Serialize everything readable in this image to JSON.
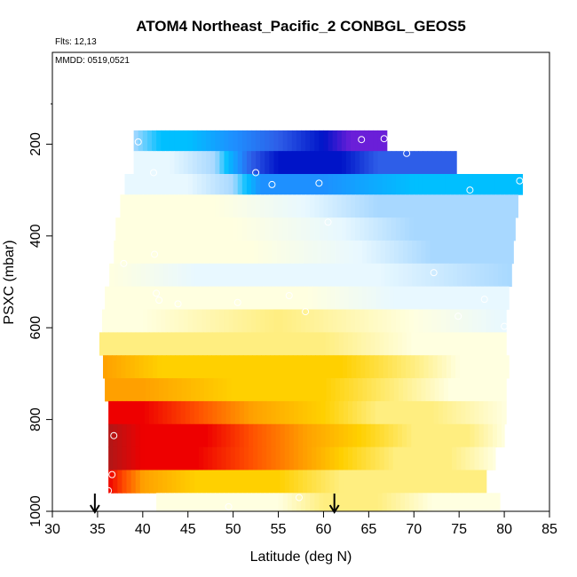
{
  "chart_data": {
    "type": "heatmap",
    "title": "ATOM4 Northeast_Pacific_2 CONBGL_GEOS5",
    "annotations": {
      "flights": "Flts: 12,13",
      "dates": "MMDD: 0519,0521"
    },
    "xlabel": "Latitude (deg N)",
    "ylabel": "PSXC (mbar)",
    "xlim": [
      30,
      85
    ],
    "ylim": [
      1000,
      0
    ],
    "y_reversed": true,
    "x_ticks": [
      30,
      35,
      40,
      45,
      50,
      55,
      60,
      65,
      70,
      75,
      80,
      85
    ],
    "y_ticks": [
      200,
      400,
      600,
      800,
      1000
    ],
    "x_tick_labels": [
      "30",
      "35",
      "40",
      "45",
      "50",
      "55",
      "60",
      "65",
      "70",
      "75",
      "80",
      "85"
    ],
    "y_tick_labels": [
      "200",
      "400",
      "600",
      "800",
      "1000"
    ],
    "grid": false,
    "colors": {
      "palette": [
        "#6a1fd8",
        "#0014c8",
        "#2e5ee8",
        "#1e90ff",
        "#00bfff",
        "#a8d8ff",
        "#e8f8ff",
        "#ffffe0",
        "#ffee80",
        "#ffd000",
        "#ffa000",
        "#ff5000",
        "#ee0000",
        "#b01818"
      ]
    },
    "rows": [
      {
        "p_top": 170,
        "p_bot": 215,
        "x_start": 39,
        "x_end": 67,
        "stops": [
          [
            39,
            5
          ],
          [
            42,
            4
          ],
          [
            45,
            4
          ],
          [
            50,
            3
          ],
          [
            55,
            2
          ],
          [
            60,
            1
          ],
          [
            63,
            0
          ],
          [
            67,
            0
          ]
        ]
      },
      {
        "p_top": 215,
        "p_bot": 265,
        "x_start": 39,
        "x_end": 74.7,
        "stops": [
          [
            39,
            6
          ],
          [
            43,
            6
          ],
          [
            48,
            5
          ],
          [
            52,
            2
          ],
          [
            55,
            1
          ],
          [
            62,
            1
          ],
          [
            66,
            2
          ],
          [
            70,
            2
          ],
          [
            74.7,
            2
          ]
        ]
      },
      {
        "p_top": 265,
        "p_bot": 310,
        "x_start": 38,
        "x_end": 82,
        "stops": [
          [
            38,
            6
          ],
          [
            45,
            6
          ],
          [
            50,
            5
          ],
          [
            53,
            3
          ],
          [
            60,
            3
          ],
          [
            70,
            4
          ],
          [
            77,
            4
          ],
          [
            82,
            4
          ]
        ]
      },
      {
        "p_top": 310,
        "p_bot": 360,
        "x_start": 37.5,
        "x_end": 81.5,
        "stops": [
          [
            37.5,
            7
          ],
          [
            48,
            7
          ],
          [
            58,
            6
          ],
          [
            66,
            5
          ],
          [
            74,
            5
          ],
          [
            81.5,
            5
          ]
        ]
      },
      {
        "p_top": 360,
        "p_bot": 410,
        "x_start": 37,
        "x_end": 81.2,
        "stops": [
          [
            37,
            7
          ],
          [
            50,
            7
          ],
          [
            62,
            6
          ],
          [
            70,
            5
          ],
          [
            81.2,
            5
          ]
        ]
      },
      {
        "p_top": 410,
        "p_bot": 460,
        "x_start": 36.8,
        "x_end": 81,
        "stops": [
          [
            36.8,
            7
          ],
          [
            52,
            7
          ],
          [
            64,
            6
          ],
          [
            72,
            5
          ],
          [
            81,
            5
          ]
        ]
      },
      {
        "p_top": 460,
        "p_bot": 510,
        "x_start": 36.3,
        "x_end": 80.8,
        "stops": [
          [
            36.3,
            7
          ],
          [
            46,
            6
          ],
          [
            56,
            6
          ],
          [
            66,
            6
          ],
          [
            80.8,
            5
          ]
        ]
      },
      {
        "p_top": 510,
        "p_bot": 560,
        "x_start": 35.8,
        "x_end": 80.5,
        "stops": [
          [
            35.8,
            7
          ],
          [
            45,
            7
          ],
          [
            58,
            7
          ],
          [
            68,
            6
          ],
          [
            80.5,
            6
          ]
        ]
      },
      {
        "p_top": 560,
        "p_bot": 610,
        "x_start": 35.5,
        "x_end": 80.2,
        "stops": [
          [
            35.5,
            7
          ],
          [
            40,
            7
          ],
          [
            55,
            8
          ],
          [
            70,
            7
          ],
          [
            80.2,
            6
          ]
        ]
      },
      {
        "p_top": 610,
        "p_bot": 660,
        "x_start": 35.2,
        "x_end": 80.2,
        "stops": [
          [
            35.2,
            8
          ],
          [
            45,
            8
          ],
          [
            60,
            8
          ],
          [
            70,
            7
          ],
          [
            80.2,
            7
          ]
        ]
      },
      {
        "p_top": 660,
        "p_bot": 710,
        "x_start": 35.6,
        "x_end": 80.5,
        "stops": [
          [
            35.6,
            10
          ],
          [
            42,
            9
          ],
          [
            52,
            9
          ],
          [
            62,
            9
          ],
          [
            70,
            8
          ],
          [
            75,
            7
          ],
          [
            80.5,
            7
          ]
        ]
      },
      {
        "p_top": 710,
        "p_bot": 760,
        "x_start": 35.8,
        "x_end": 80.2,
        "stops": [
          [
            35.8,
            10
          ],
          [
            40,
            10
          ],
          [
            50,
            9
          ],
          [
            60,
            9
          ],
          [
            68,
            8
          ],
          [
            74,
            7
          ],
          [
            80.2,
            7
          ]
        ]
      },
      {
        "p_top": 760,
        "p_bot": 810,
        "x_start": 36.2,
        "x_end": 80.2,
        "stops": [
          [
            36.2,
            12
          ],
          [
            40,
            12
          ],
          [
            46,
            11
          ],
          [
            52,
            10
          ],
          [
            60,
            9
          ],
          [
            66,
            8
          ],
          [
            72,
            8
          ],
          [
            80.2,
            7
          ]
        ]
      },
      {
        "p_top": 810,
        "p_bot": 860,
        "x_start": 36.2,
        "x_end": 80,
        "stops": [
          [
            36.2,
            13
          ],
          [
            40,
            12
          ],
          [
            47,
            12
          ],
          [
            52,
            11
          ],
          [
            58,
            10
          ],
          [
            64,
            9
          ],
          [
            70,
            8
          ],
          [
            76,
            8
          ],
          [
            80,
            7
          ]
        ]
      },
      {
        "p_top": 860,
        "p_bot": 910,
        "x_start": 36.2,
        "x_end": 79,
        "stops": [
          [
            36.2,
            13
          ],
          [
            40,
            12
          ],
          [
            46,
            12
          ],
          [
            52,
            11
          ],
          [
            58,
            10
          ],
          [
            62,
            9
          ],
          [
            68,
            8
          ],
          [
            74,
            8
          ],
          [
            79,
            7
          ]
        ]
      },
      {
        "p_top": 910,
        "p_bot": 960,
        "x_start": 36.2,
        "x_end": 78,
        "stops": [
          [
            36.2,
            12
          ],
          [
            38,
            11
          ],
          [
            40,
            10
          ],
          [
            46,
            9
          ],
          [
            55,
            9
          ],
          [
            62,
            8
          ],
          [
            70,
            8
          ],
          [
            78,
            8
          ]
        ]
      },
      {
        "p_top": 960,
        "p_bot": 1000,
        "x_start": 41.5,
        "x_end": 79.5,
        "stops": [
          [
            41.5,
            7
          ],
          [
            48,
            7
          ],
          [
            55,
            7
          ],
          [
            60,
            8
          ],
          [
            66,
            8
          ],
          [
            72,
            7
          ],
          [
            79.5,
            7
          ]
        ]
      }
    ],
    "observations": [
      {
        "x": 39.5,
        "y": 195
      },
      {
        "x": 64.2,
        "y": 190
      },
      {
        "x": 66.7,
        "y": 188
      },
      {
        "x": 69.2,
        "y": 220
      },
      {
        "x": 41.2,
        "y": 262
      },
      {
        "x": 52.5,
        "y": 262
      },
      {
        "x": 54.3,
        "y": 288
      },
      {
        "x": 59.5,
        "y": 285
      },
      {
        "x": 76.2,
        "y": 300
      },
      {
        "x": 81.7,
        "y": 280
      },
      {
        "x": 60.5,
        "y": 370
      },
      {
        "x": 41.3,
        "y": 440
      },
      {
        "x": 37.9,
        "y": 460
      },
      {
        "x": 72.2,
        "y": 480
      },
      {
        "x": 41.5,
        "y": 525
      },
      {
        "x": 41.8,
        "y": 540
      },
      {
        "x": 43.9,
        "y": 548
      },
      {
        "x": 50.5,
        "y": 545
      },
      {
        "x": 56.2,
        "y": 530
      },
      {
        "x": 58.0,
        "y": 565
      },
      {
        "x": 77.8,
        "y": 538
      },
      {
        "x": 74.9,
        "y": 575
      },
      {
        "x": 80.0,
        "y": 597
      },
      {
        "x": 36.8,
        "y": 835
      },
      {
        "x": 36.6,
        "y": 920
      },
      {
        "x": 36.2,
        "y": 955
      },
      {
        "x": 57.3,
        "y": 970
      },
      {
        "x": 49.5,
        "y": 990
      }
    ],
    "markers": [
      {
        "type": "arrow-down",
        "x": 34.7
      },
      {
        "type": "arrow-down",
        "x": 61.2
      }
    ]
  }
}
